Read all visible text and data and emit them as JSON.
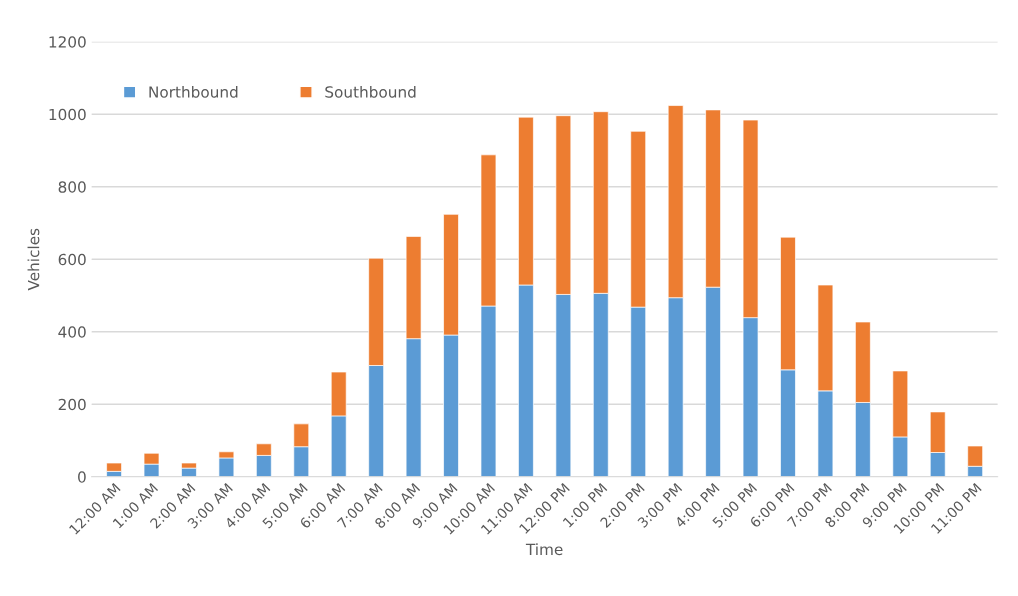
{
  "chart_data": {
    "type": "bar",
    "stacked": true,
    "xlabel": "Time",
    "ylabel": "Vehicles",
    "categories": [
      "12:00 AM",
      "1:00 AM",
      "2:00 AM",
      "3:00 AM",
      "4:00 AM",
      "5:00 AM",
      "6:00 AM",
      "7:00 AM",
      "8:00 AM",
      "9:00 AM",
      "10:00 AM",
      "11:00 AM",
      "12:00 PM",
      "1:00 PM",
      "2:00 PM",
      "3:00 PM",
      "4:00 PM",
      "5:00 PM",
      "6:00 PM",
      "7:00 PM",
      "8:00 PM",
      "9:00 PM",
      "10:00 PM",
      "11:00 PM"
    ],
    "series": [
      {
        "name": "Northbound",
        "color": "#5b9bd5",
        "values": [
          15,
          35,
          24,
          52,
          59,
          83,
          168,
          307,
          381,
          391,
          471,
          529,
          503,
          506,
          468,
          494,
          523,
          439,
          295,
          237,
          205,
          110,
          67,
          29
        ]
      },
      {
        "name": "Southbound",
        "color": "#ed7d31",
        "values": [
          23,
          30,
          14,
          17,
          32,
          63,
          121,
          296,
          282,
          333,
          417,
          463,
          493,
          501,
          485,
          530,
          489,
          545,
          366,
          292,
          222,
          182,
          112,
          56
        ]
      }
    ],
    "ylim": [
      0,
      1200
    ],
    "yticks": [
      0,
      200,
      400,
      600,
      800,
      1000,
      1200
    ],
    "grid": "y",
    "legend": "top left"
  }
}
